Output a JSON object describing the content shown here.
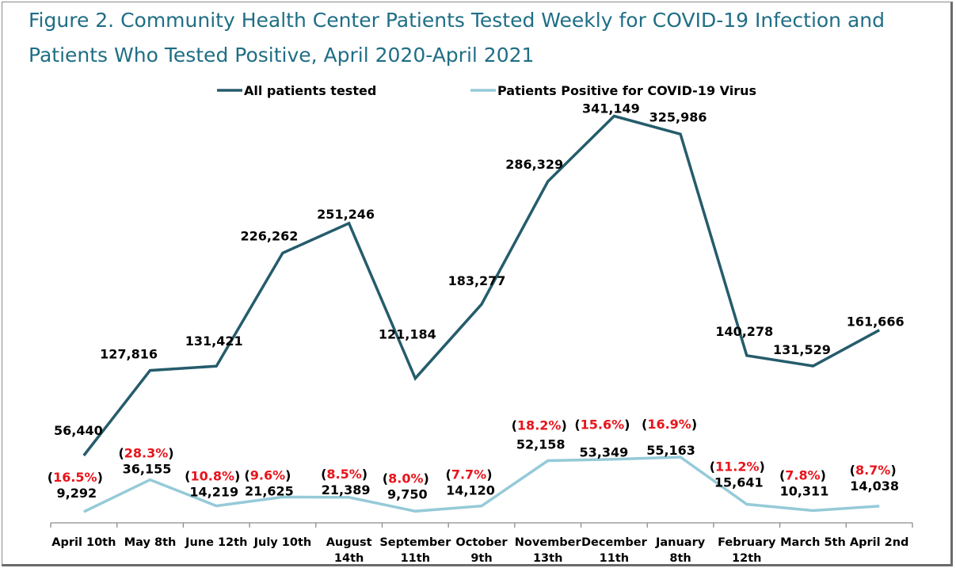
{
  "chart_data": {
    "type": "line",
    "title": "Figure 2. Community Health Center Patients Tested Weekly for COVID-19 Infection and Patients Who Tested Positive, April 2020-April 2021",
    "categories": [
      [
        "April 10th"
      ],
      [
        "May 8th"
      ],
      [
        "June 12th"
      ],
      [
        "July 10th"
      ],
      [
        "August",
        "14th"
      ],
      [
        "September",
        "11th"
      ],
      [
        "October",
        "9th"
      ],
      [
        "November",
        "13th"
      ],
      [
        "December",
        "11th"
      ],
      [
        "January",
        "8th"
      ],
      [
        "February",
        "12th"
      ],
      [
        "March 5th"
      ],
      [
        "April 2nd"
      ]
    ],
    "series": [
      {
        "name": "All patients tested",
        "color": "#255c6b",
        "values": [
          56440,
          127816,
          131421,
          226262,
          251246,
          121184,
          183277,
          286329,
          341149,
          325986,
          140278,
          131529,
          161666
        ],
        "labels": [
          "56,440",
          "127,816",
          "131,421",
          "226,262",
          "251,246",
          "121,184",
          "183,277",
          "286,329",
          "341,149",
          "325,986",
          "140,278",
          "131,529",
          "161,666"
        ]
      },
      {
        "name": "Patients Positive for COVID-19 Virus",
        "color": "#95cad8",
        "values": [
          9292,
          36155,
          14219,
          21625,
          21389,
          9750,
          14120,
          52158,
          53349,
          55163,
          15641,
          10311,
          14038
        ],
        "labels": [
          "9,292",
          "36,155",
          "14,219",
          "21,625",
          "21,389",
          "9,750",
          "14,120",
          "52,158",
          "53,349",
          "55,163",
          "15,641",
          "10,311",
          "14,038"
        ],
        "percent_labels": [
          "16.5%",
          "28.3%",
          "10.8%",
          "9.6%",
          "8.5%",
          "8.0%",
          "7.7%",
          "18.2%",
          "15.6%",
          "16.9%",
          "11.2%",
          "7.8%",
          "8.7%"
        ]
      }
    ],
    "percent_color": "#e8141b",
    "ylim": [
      0,
      380000
    ],
    "grid": false,
    "legend": "top-center"
  }
}
